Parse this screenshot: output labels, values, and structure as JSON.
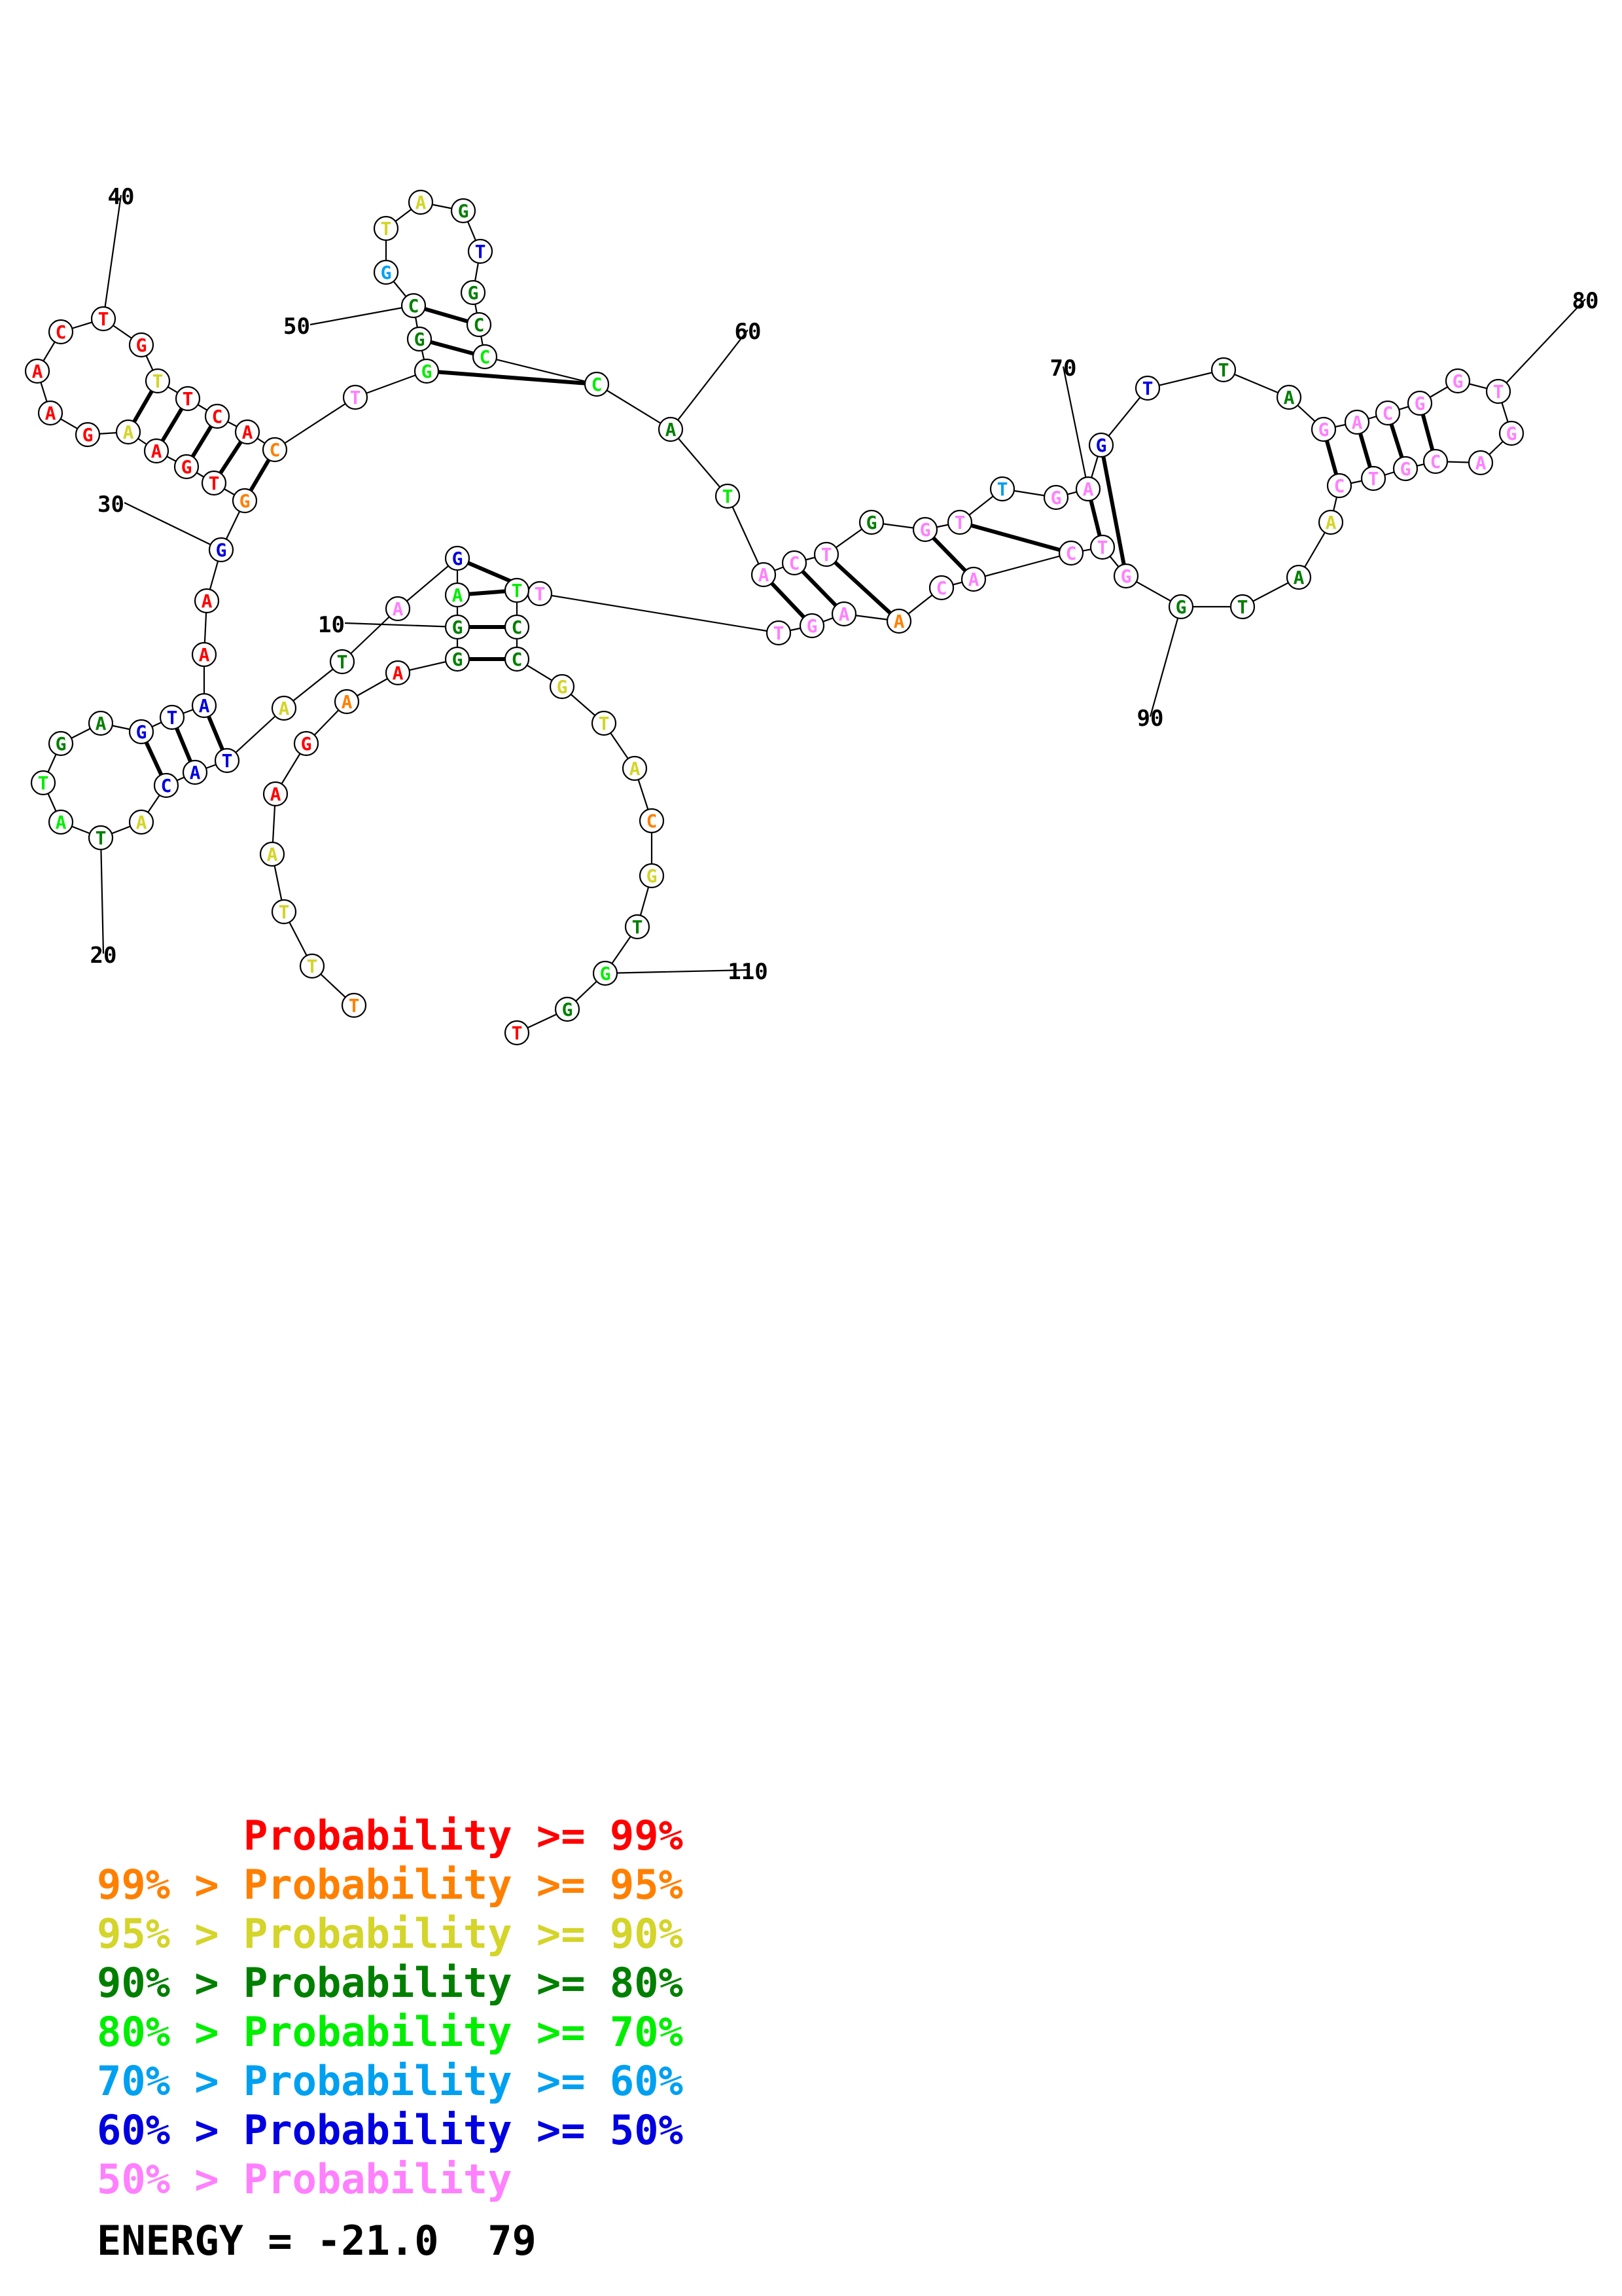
{
  "colors": {
    "p99": "#ff0000",
    "p95": "#ff8000",
    "p90": "#d4d42a",
    "p80": "#007f00",
    "p70": "#00ee00",
    "p60": "#00a0f0",
    "p50": "#0000e0",
    "low": "#ff80ff"
  },
  "nucleotides": [
    {
      "n": 1,
      "b": "T",
      "c": "p95"
    },
    {
      "n": 2,
      "b": "T",
      "c": "p90"
    },
    {
      "n": 3,
      "b": "T",
      "c": "p90"
    },
    {
      "n": 4,
      "b": "A",
      "c": "p90"
    },
    {
      "n": 5,
      "b": "A",
      "c": "p99"
    },
    {
      "n": 6,
      "b": "G",
      "c": "p99"
    },
    {
      "n": 7,
      "b": "A",
      "c": "p95"
    },
    {
      "n": 8,
      "b": "A",
      "c": "p99"
    },
    {
      "n": 9,
      "b": "G",
      "c": "p80"
    },
    {
      "n": 10,
      "b": "G",
      "c": "p80"
    },
    {
      "n": 11,
      "b": "A",
      "c": "p70"
    },
    {
      "n": 12,
      "b": "G",
      "c": "p50"
    },
    {
      "n": 13,
      "b": "A",
      "c": "low"
    },
    {
      "n": 14,
      "b": "T",
      "c": "p80"
    },
    {
      "n": 15,
      "b": "A",
      "c": "p90"
    },
    {
      "n": 16,
      "b": "T",
      "c": "p50"
    },
    {
      "n": 17,
      "b": "A",
      "c": "p50"
    },
    {
      "n": 18,
      "b": "C",
      "c": "p50"
    },
    {
      "n": 19,
      "b": "A",
      "c": "p90"
    },
    {
      "n": 20,
      "b": "T",
      "c": "p80"
    },
    {
      "n": 21,
      "b": "A",
      "c": "p70"
    },
    {
      "n": 22,
      "b": "T",
      "c": "p70"
    },
    {
      "n": 23,
      "b": "G",
      "c": "p80"
    },
    {
      "n": 24,
      "b": "A",
      "c": "p80"
    },
    {
      "n": 25,
      "b": "G",
      "c": "p50"
    },
    {
      "n": 26,
      "b": "T",
      "c": "p50"
    },
    {
      "n": 27,
      "b": "A",
      "c": "p50"
    },
    {
      "n": 28,
      "b": "A",
      "c": "p99"
    },
    {
      "n": 29,
      "b": "A",
      "c": "p99"
    },
    {
      "n": 30,
      "b": "G",
      "c": "p50"
    },
    {
      "n": 31,
      "b": "G",
      "c": "p95"
    },
    {
      "n": 32,
      "b": "T",
      "c": "p99"
    },
    {
      "n": 33,
      "b": "G",
      "c": "p99"
    },
    {
      "n": 34,
      "b": "A",
      "c": "p99"
    },
    {
      "n": 35,
      "b": "A",
      "c": "p90"
    },
    {
      "n": 36,
      "b": "G",
      "c": "p99"
    },
    {
      "n": 37,
      "b": "A",
      "c": "p99"
    },
    {
      "n": 38,
      "b": "A",
      "c": "p99"
    },
    {
      "n": 39,
      "b": "C",
      "c": "p99"
    },
    {
      "n": 40,
      "b": "T",
      "c": "p99"
    },
    {
      "n": 41,
      "b": "G",
      "c": "p99"
    },
    {
      "n": 42,
      "b": "T",
      "c": "p90"
    },
    {
      "n": 43,
      "b": "T",
      "c": "p99"
    },
    {
      "n": 44,
      "b": "C",
      "c": "p99"
    },
    {
      "n": 45,
      "b": "A",
      "c": "p99"
    },
    {
      "n": 46,
      "b": "C",
      "c": "p95"
    },
    {
      "n": 47,
      "b": "T",
      "c": "low"
    },
    {
      "n": 48,
      "b": "G",
      "c": "p70"
    },
    {
      "n": 49,
      "b": "G",
      "c": "p80"
    },
    {
      "n": 50,
      "b": "C",
      "c": "p80"
    },
    {
      "n": 51,
      "b": "G",
      "c": "p60"
    },
    {
      "n": 52,
      "b": "T",
      "c": "p90"
    },
    {
      "n": 53,
      "b": "A",
      "c": "p90"
    },
    {
      "n": 54,
      "b": "G",
      "c": "p80"
    },
    {
      "n": 55,
      "b": "T",
      "c": "p50"
    },
    {
      "n": 56,
      "b": "G",
      "c": "p80"
    },
    {
      "n": 57,
      "b": "C",
      "c": "p80"
    },
    {
      "n": 58,
      "b": "C",
      "c": "p70"
    },
    {
      "n": 59,
      "b": "C",
      "c": "p70"
    },
    {
      "n": 60,
      "b": "A",
      "c": "p80"
    },
    {
      "n": 61,
      "b": "T",
      "c": "p70"
    },
    {
      "n": 62,
      "b": "A",
      "c": "low"
    },
    {
      "n": 63,
      "b": "C",
      "c": "low"
    },
    {
      "n": 64,
      "b": "T",
      "c": "low"
    },
    {
      "n": 65,
      "b": "G",
      "c": "p80"
    },
    {
      "n": 66,
      "b": "G",
      "c": "low"
    },
    {
      "n": 67,
      "b": "T",
      "c": "low"
    },
    {
      "n": 68,
      "b": "T",
      "c": "p60"
    },
    {
      "n": 69,
      "b": "G",
      "c": "low"
    },
    {
      "n": 70,
      "b": "A",
      "c": "low"
    },
    {
      "n": 71,
      "b": "G",
      "c": "p50"
    },
    {
      "n": 72,
      "b": "T",
      "c": "p50"
    },
    {
      "n": 73,
      "b": "T",
      "c": "p80"
    },
    {
      "n": 74,
      "b": "A",
      "c": "p80"
    },
    {
      "n": 75,
      "b": "G",
      "c": "low"
    },
    {
      "n": 76,
      "b": "A",
      "c": "low"
    },
    {
      "n": 77,
      "b": "C",
      "c": "low"
    },
    {
      "n": 78,
      "b": "G",
      "c": "low"
    },
    {
      "n": 79,
      "b": "G",
      "c": "low"
    },
    {
      "n": 80,
      "b": "T",
      "c": "low"
    },
    {
      "n": 81,
      "b": "G",
      "c": "low"
    },
    {
      "n": 82,
      "b": "A",
      "c": "low"
    },
    {
      "n": 83,
      "b": "C",
      "c": "low"
    },
    {
      "n": 84,
      "b": "G",
      "c": "low"
    },
    {
      "n": 85,
      "b": "T",
      "c": "low"
    },
    {
      "n": 86,
      "b": "C",
      "c": "low"
    },
    {
      "n": 87,
      "b": "A",
      "c": "p90"
    },
    {
      "n": 88,
      "b": "A",
      "c": "p80"
    },
    {
      "n": 89,
      "b": "T",
      "c": "p80"
    },
    {
      "n": 90,
      "b": "G",
      "c": "p80"
    },
    {
      "n": 91,
      "b": "G",
      "c": "low"
    },
    {
      "n": 92,
      "b": "T",
      "c": "low"
    },
    {
      "n": 93,
      "b": "C",
      "c": "low"
    },
    {
      "n": 94,
      "b": "A",
      "c": "low"
    },
    {
      "n": 95,
      "b": "C",
      "c": "low"
    },
    {
      "n": 96,
      "b": "A",
      "c": "p95"
    },
    {
      "n": 97,
      "b": "A",
      "c": "low"
    },
    {
      "n": 98,
      "b": "G",
      "c": "low"
    },
    {
      "n": 99,
      "b": "T",
      "c": "low"
    },
    {
      "n": 100,
      "b": "T",
      "c": "low"
    },
    {
      "n": 101,
      "b": "T",
      "c": "p70"
    },
    {
      "n": 102,
      "b": "C",
      "c": "p80"
    },
    {
      "n": 103,
      "b": "C",
      "c": "p80"
    },
    {
      "n": 104,
      "b": "G",
      "c": "p90"
    },
    {
      "n": 105,
      "b": "T",
      "c": "p90"
    },
    {
      "n": 106,
      "b": "A",
      "c": "p90"
    },
    {
      "n": 107,
      "b": "C",
      "c": "p95"
    },
    {
      "n": 108,
      "b": "G",
      "c": "p90"
    },
    {
      "n": 109,
      "b": "T",
      "c": "p80"
    },
    {
      "n": 110,
      "b": "G",
      "c": "p70"
    },
    {
      "n": 111,
      "b": "G",
      "c": "p80"
    },
    {
      "n": 112,
      "b": "T",
      "c": "p99"
    }
  ],
  "pairs": [
    [
      9,
      103
    ],
    [
      10,
      102
    ],
    [
      11,
      101
    ],
    [
      12,
      100
    ],
    [
      16,
      27
    ],
    [
      17,
      26
    ],
    [
      18,
      25
    ],
    [
      31,
      46
    ],
    [
      32,
      45
    ],
    [
      33,
      44
    ],
    [
      34,
      43
    ],
    [
      35,
      42
    ],
    [
      48,
      59
    ],
    [
      49,
      58
    ],
    [
      50,
      57
    ],
    [
      62,
      98
    ],
    [
      63,
      97
    ],
    [
      64,
      96
    ],
    [
      66,
      94
    ],
    [
      67,
      93
    ],
    [
      70,
      92
    ],
    [
      71,
      91
    ],
    [
      75,
      86
    ],
    [
      76,
      85
    ],
    [
      77,
      84
    ],
    [
      78,
      83
    ]
  ],
  "position_labels": [
    {
      "n": 10,
      "text": "10"
    },
    {
      "n": 20,
      "text": "20"
    },
    {
      "n": 30,
      "text": "30"
    },
    {
      "n": 40,
      "text": "40"
    },
    {
      "n": 50,
      "text": "50"
    },
    {
      "n": 60,
      "text": "60"
    },
    {
      "n": 70,
      "text": "70"
    },
    {
      "n": 80,
      "text": "80"
    },
    {
      "n": 90,
      "text": "90"
    },
    {
      "n": 110,
      "text": "110"
    }
  ],
  "legend": [
    {
      "text": "      Probability >= 99%",
      "c": "p99"
    },
    {
      "text": "99% > Probability >= 95%",
      "c": "p95"
    },
    {
      "text": "95% > Probability >= 90%",
      "c": "p90"
    },
    {
      "text": "90% > Probability >= 80%",
      "c": "p80"
    },
    {
      "text": "80% > Probability >= 70%",
      "c": "p70"
    },
    {
      "text": "70% > Probability >= 60%",
      "c": "p60"
    },
    {
      "text": "60% > Probability >= 50%",
      "c": "p50"
    },
    {
      "text": "50% > Probability",
      "c": "low"
    }
  ],
  "energy": "ENERGY = -21.0  79"
}
